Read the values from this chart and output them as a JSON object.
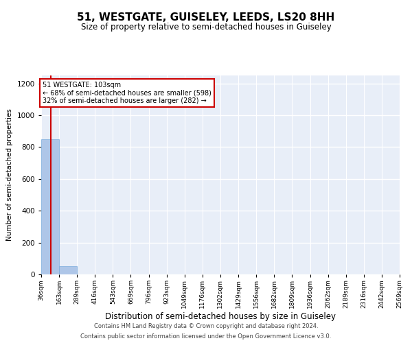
{
  "title": "51, WESTGATE, GUISELEY, LEEDS, LS20 8HH",
  "subtitle": "Size of property relative to semi-detached houses in Guiseley",
  "xlabel": "Distribution of semi-detached houses by size in Guiseley",
  "ylabel": "Number of semi-detached properties",
  "footer_line1": "Contains HM Land Registry data © Crown copyright and database right 2024.",
  "footer_line2": "Contains public sector information licensed under the Open Government Licence v3.0.",
  "annotation_line1": "51 WESTGATE: 103sqm",
  "annotation_line2": "← 68% of semi-detached houses are smaller (598)",
  "annotation_line3": "32% of semi-detached houses are larger (282) →",
  "bar_edges": [
    36,
    163,
    289,
    416,
    543,
    669,
    796,
    923,
    1049,
    1176,
    1302,
    1429,
    1556,
    1682,
    1809,
    1936,
    2062,
    2189,
    2316,
    2442,
    2569
  ],
  "bar_heights": [
    850,
    50,
    0,
    0,
    0,
    0,
    0,
    0,
    0,
    0,
    0,
    0,
    0,
    0,
    0,
    0,
    0,
    0,
    0,
    0
  ],
  "bar_color": "#aec6e8",
  "bar_edge_color": "#7aacdd",
  "red_line_x": 103,
  "ylim": [
    0,
    1250
  ],
  "yticks": [
    0,
    200,
    400,
    600,
    800,
    1000,
    1200
  ],
  "bg_color": "#e8eef8",
  "grid_color": "#ffffff",
  "annotation_box_facecolor": "#ffffff",
  "annotation_box_edgecolor": "#cc0000",
  "red_line_color": "#cc0000",
  "title_fontsize": 11,
  "subtitle_fontsize": 8.5,
  "xlabel_fontsize": 8.5,
  "ylabel_fontsize": 7.5,
  "xtick_fontsize": 6.5,
  "ytick_fontsize": 7.5,
  "annotation_fontsize": 7,
  "footer_fontsize": 6
}
